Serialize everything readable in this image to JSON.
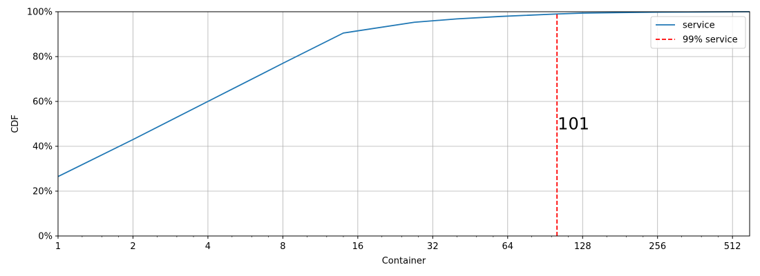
{
  "chart_data": {
    "type": "line",
    "title": "",
    "xlabel": "Container",
    "ylabel": "CDF",
    "xscale": "log2",
    "xlim": [
      1,
      600
    ],
    "ylim": [
      0,
      1
    ],
    "x_ticks": [
      1,
      2,
      4,
      8,
      16,
      32,
      64,
      128,
      256,
      512
    ],
    "x_tick_labels": [
      "1",
      "2",
      "4",
      "8",
      "16",
      "32",
      "64",
      "128",
      "256",
      "512"
    ],
    "y_ticks": [
      0,
      0.2,
      0.4,
      0.6,
      0.8,
      1.0
    ],
    "y_tick_labels": [
      "0%",
      "20%",
      "40%",
      "60%",
      "80%",
      "100%"
    ],
    "grid": true,
    "legend_position": "top-right",
    "series": [
      {
        "name": "service",
        "color": "#1f77b4",
        "style": "solid",
        "x": [
          1,
          2,
          4,
          8,
          14,
          27,
          40,
          60,
          101,
          128,
          256,
          600
        ],
        "y": [
          0.265,
          0.43,
          0.6,
          0.77,
          0.905,
          0.953,
          0.968,
          0.979,
          0.99,
          0.994,
          0.998,
          1.0
        ]
      }
    ],
    "reference_line": {
      "name": "99% service",
      "color": "#ff0000",
      "style": "dashed",
      "x": 101,
      "y_top": 0.99
    },
    "annotations": [
      {
        "text": "101",
        "x": 101,
        "y": 0.5
      }
    ]
  }
}
